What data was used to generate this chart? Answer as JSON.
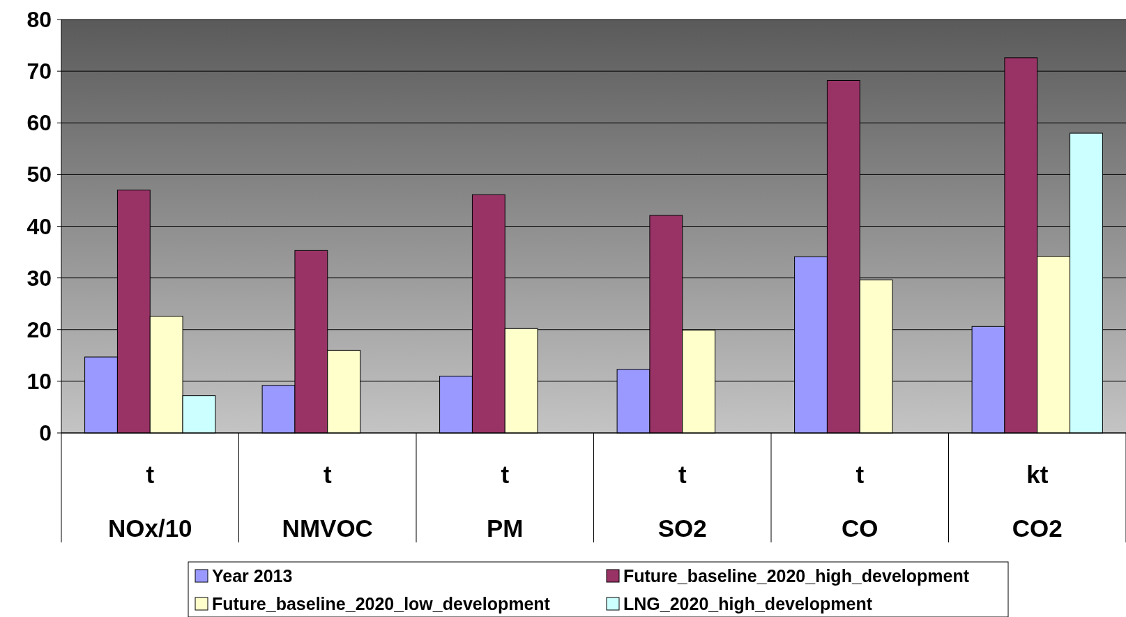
{
  "chart_data": {
    "type": "bar",
    "categories": [
      "t\nNOx/10",
      "t\nNMVOC",
      "t\nPM",
      "t\nSO2",
      "t\nCO",
      "kt\nCO2"
    ],
    "series": [
      {
        "name": "Year 2013",
        "color": "#9999ff",
        "values": [
          14.7,
          9.2,
          11.0,
          12.3,
          34.1,
          20.6
        ]
      },
      {
        "name": "Future_baseline_2020_high_development",
        "color": "#993366",
        "values": [
          47.0,
          35.3,
          46.1,
          42.1,
          68.2,
          72.6
        ]
      },
      {
        "name": "Future_baseline_2020_low_development",
        "color": "#ffffcc",
        "values": [
          22.6,
          16.0,
          20.2,
          19.9,
          29.6,
          34.2
        ]
      },
      {
        "name": "LNG_2020_high_development",
        "color": "#ccffff",
        "values": [
          7.2,
          null,
          null,
          null,
          null,
          58.0
        ]
      }
    ],
    "ylim": [
      0,
      80
    ],
    "yticks": [
      0,
      10,
      20,
      30,
      40,
      50,
      60,
      70,
      80
    ],
    "grid": "y",
    "legend": "bottom"
  }
}
